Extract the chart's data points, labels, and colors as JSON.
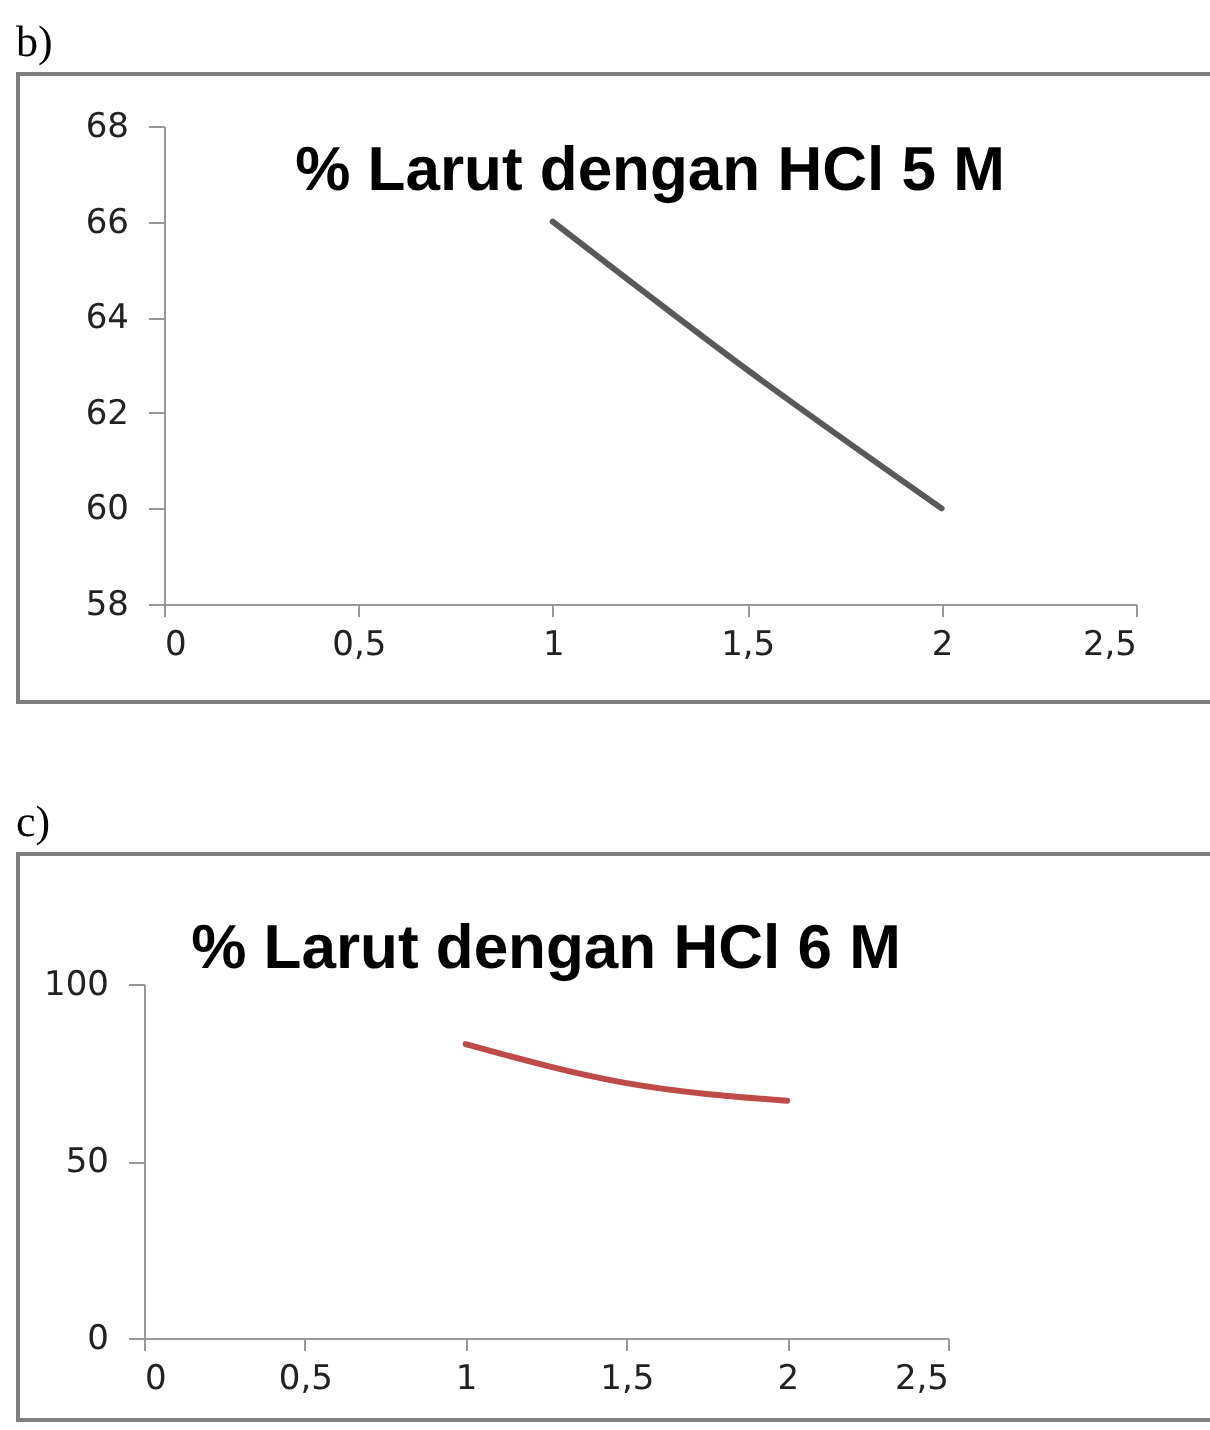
{
  "chart_data": [
    {
      "type": "line",
      "title": "% Larut dengan HCl 5 M",
      "annotations": [
        "b)"
      ],
      "x": [
        1,
        1.5,
        2
      ],
      "values": [
        66,
        62.9,
        60
      ],
      "color": "#595959",
      "xlim": [
        0,
        2.5
      ],
      "xticks": [
        0,
        {
          "value": 0.5,
          "label": "0,5"
        },
        1,
        {
          "value": 1.5,
          "label": "1,5"
        },
        2,
        {
          "value": 2.5,
          "label": "2,5"
        }
      ],
      "ylim": [
        58,
        68
      ],
      "yticks": [
        58,
        60,
        62,
        64,
        66,
        68
      ]
    },
    {
      "type": "line",
      "title": "% Larut dengan HCl 6 M",
      "annotations": [
        "c)"
      ],
      "x": [
        1,
        1.5,
        2
      ],
      "values": [
        83,
        72,
        67
      ],
      "color": "#be4b48",
      "xlim": [
        0,
        2.5
      ],
      "xticks": [
        0,
        {
          "value": 0.5,
          "label": "0,5"
        },
        1,
        {
          "value": 1.5,
          "label": "1,5"
        },
        2,
        {
          "value": 2.5,
          "label": "2,5"
        }
      ],
      "ylim": [
        0,
        100
      ],
      "yticks": [
        0,
        50,
        100
      ]
    }
  ]
}
